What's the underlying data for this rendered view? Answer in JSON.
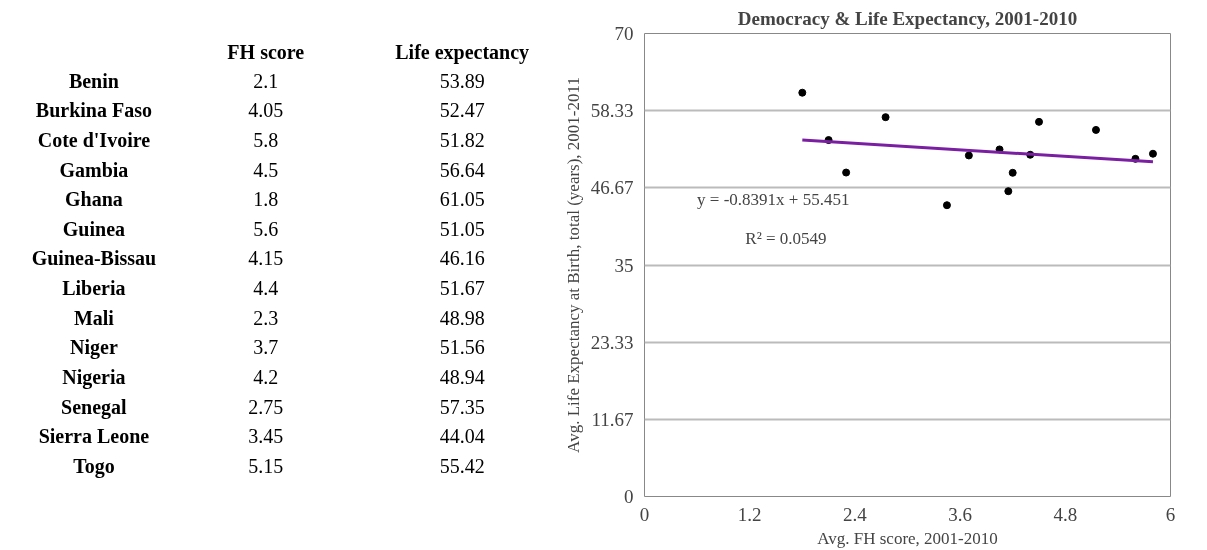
{
  "chart_data": [
    {
      "type": "other",
      "categories": [
        "Benin",
        "Burkina Faso",
        "Cote d'Ivoire",
        "Gambia",
        "Ghana",
        "Guinea",
        "Guinea-Bissau",
        "Liberia",
        "Mali",
        "Niger",
        "Nigeria",
        "Senegal",
        "Sierra Leone",
        "Togo"
      ],
      "series": [
        {
          "name": "FH score",
          "values": [
            2.1,
            4.05,
            5.8,
            4.5,
            1.8,
            5.6,
            4.15,
            4.4,
            2.3,
            3.7,
            4.2,
            2.75,
            3.45,
            5.15
          ]
        },
        {
          "name": "Life expectancy",
          "values": [
            53.89,
            52.47,
            51.82,
            56.64,
            61.05,
            51.05,
            46.16,
            51.67,
            48.98,
            51.56,
            48.94,
            57.35,
            44.04,
            55.42
          ]
        }
      ],
      "data_labels": true
    },
    {
      "type": "scatter",
      "title": "Democracy & Life Expectancy, 2001-2010",
      "xlabel": "Avg. FH score, 2001-2010",
      "ylabel": "Avg. Life Expectancy at Birth, total (years), 2001-2011",
      "xlim": [
        0,
        6
      ],
      "xticks": [
        0,
        1.2,
        2.4,
        3.6,
        4.8,
        6
      ],
      "ylim": [
        0,
        70
      ],
      "yticks": [
        0,
        11.67,
        23.33,
        35,
        46.67,
        58.33,
        70
      ],
      "grid": "y",
      "marker": "circle",
      "series": [
        {
          "type": "scatter",
          "color": "#000000",
          "x": [
            2.1,
            4.05,
            5.8,
            4.5,
            1.8,
            5.6,
            4.15,
            4.4,
            2.3,
            3.7,
            4.2,
            2.75,
            3.45,
            5.15
          ],
          "values": [
            53.89,
            52.47,
            51.82,
            56.64,
            61.05,
            51.05,
            46.16,
            51.67,
            48.98,
            51.56,
            48.94,
            57.35,
            44.04,
            55.42
          ]
        },
        {
          "type": "line",
          "color": "#7b1fa2",
          "marker": "none",
          "x": [
            1.8,
            5.8
          ],
          "values": [
            53.9,
            50.6
          ]
        }
      ],
      "annotations": [
        "y = -0.8391x + 55.451",
        "R² = 0.0549"
      ]
    }
  ]
}
